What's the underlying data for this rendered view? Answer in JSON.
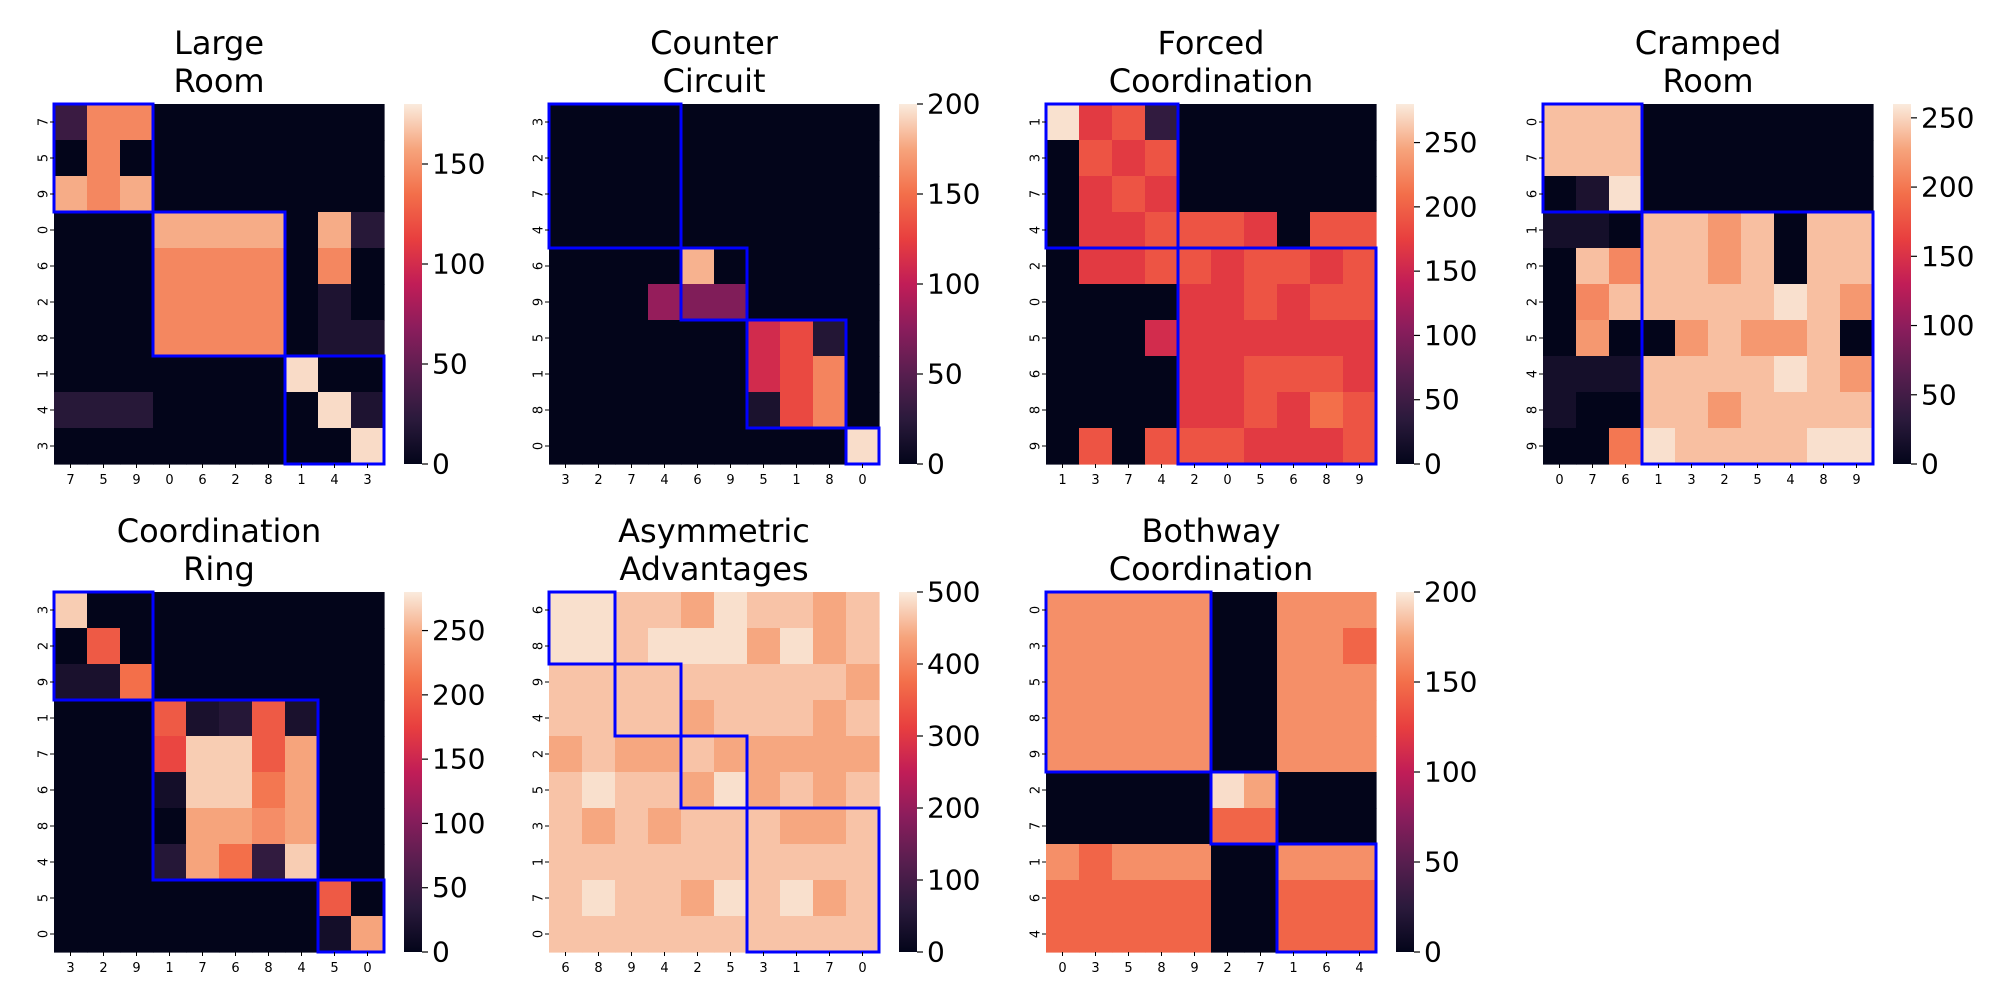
{
  "figure": {
    "title": ""
  },
  "chart_data": [
    {
      "type": "heatmap",
      "title": "Large\nRoom",
      "labels": [
        "7",
        "5",
        "9",
        "0",
        "6",
        "2",
        "8",
        "1",
        "4",
        "3"
      ],
      "vmin": 0,
      "vmax": 180,
      "colorbar_ticks": [
        0,
        50,
        100,
        150
      ],
      "groups": [
        3,
        4,
        3
      ],
      "matrix": [
        [
          30,
          145,
          145,
          0,
          0,
          0,
          0,
          0,
          0,
          0
        ],
        [
          0,
          145,
          0,
          0,
          0,
          0,
          0,
          0,
          0,
          0
        ],
        [
          160,
          145,
          160,
          0,
          0,
          0,
          0,
          0,
          0,
          0
        ],
        [
          0,
          0,
          0,
          160,
          160,
          160,
          160,
          0,
          160,
          20
        ],
        [
          0,
          0,
          0,
          145,
          145,
          145,
          145,
          0,
          145,
          0
        ],
        [
          0,
          0,
          0,
          145,
          145,
          145,
          145,
          0,
          15,
          0
        ],
        [
          0,
          0,
          0,
          145,
          145,
          145,
          145,
          0,
          15,
          15
        ],
        [
          0,
          0,
          0,
          0,
          0,
          0,
          0,
          175,
          0,
          0
        ],
        [
          20,
          20,
          20,
          0,
          0,
          0,
          0,
          0,
          175,
          15
        ],
        [
          0,
          0,
          0,
          0,
          0,
          0,
          0,
          0,
          0,
          175
        ]
      ]
    },
    {
      "type": "heatmap",
      "title": "Counter\nCircuit",
      "labels": [
        "3",
        "2",
        "7",
        "4",
        "6",
        "9",
        "5",
        "1",
        "8",
        "0"
      ],
      "vmin": 0,
      "vmax": 200,
      "colorbar_ticks": [
        0,
        50,
        100,
        150,
        200
      ],
      "groups": [
        4,
        2,
        3,
        1
      ],
      "matrix": [
        [
          0,
          0,
          0,
          0,
          0,
          0,
          0,
          0,
          0,
          0
        ],
        [
          0,
          0,
          0,
          0,
          0,
          0,
          0,
          0,
          0,
          0
        ],
        [
          0,
          0,
          0,
          0,
          0,
          0,
          0,
          0,
          0,
          0
        ],
        [
          0,
          0,
          0,
          0,
          0,
          0,
          0,
          0,
          0,
          0
        ],
        [
          0,
          0,
          0,
          0,
          180,
          0,
          0,
          0,
          0,
          0
        ],
        [
          0,
          0,
          0,
          80,
          70,
          70,
          0,
          0,
          0,
          0
        ],
        [
          0,
          0,
          0,
          0,
          0,
          0,
          110,
          130,
          20,
          0
        ],
        [
          0,
          0,
          0,
          0,
          0,
          0,
          110,
          130,
          160,
          0
        ],
        [
          0,
          0,
          0,
          0,
          0,
          0,
          15,
          130,
          160,
          0
        ],
        [
          0,
          0,
          0,
          0,
          0,
          0,
          0,
          0,
          0,
          195
        ]
      ]
    },
    {
      "type": "heatmap",
      "title": "Forced\nCoordination",
      "labels": [
        "1",
        "3",
        "7",
        "4",
        "2",
        "0",
        "5",
        "6",
        "8",
        "9"
      ],
      "vmin": 0,
      "vmax": 280,
      "colorbar_ticks": [
        0,
        50,
        100,
        150,
        200,
        250
      ],
      "groups": [
        4,
        6
      ],
      "matrix": [
        [
          275,
          170,
          190,
          40,
          0,
          0,
          0,
          0,
          0,
          0
        ],
        [
          0,
          190,
          170,
          190,
          0,
          0,
          0,
          0,
          0,
          0
        ],
        [
          0,
          170,
          190,
          170,
          0,
          0,
          0,
          0,
          0,
          0
        ],
        [
          0,
          170,
          170,
          190,
          190,
          190,
          170,
          0,
          190,
          190
        ],
        [
          0,
          170,
          170,
          190,
          190,
          170,
          190,
          190,
          170,
          190
        ],
        [
          0,
          0,
          0,
          0,
          170,
          170,
          190,
          170,
          190,
          190
        ],
        [
          0,
          0,
          0,
          155,
          170,
          170,
          170,
          170,
          170,
          170
        ],
        [
          0,
          0,
          0,
          0,
          170,
          170,
          190,
          190,
          190,
          170
        ],
        [
          0,
          0,
          0,
          0,
          170,
          170,
          190,
          170,
          210,
          190
        ],
        [
          0,
          190,
          0,
          190,
          190,
          190,
          170,
          170,
          170,
          190
        ]
      ]
    },
    {
      "type": "heatmap",
      "title": "Cramped\nRoom",
      "labels": [
        "0",
        "7",
        "6",
        "1",
        "3",
        "2",
        "5",
        "4",
        "8",
        "9"
      ],
      "vmin": 0,
      "vmax": 260,
      "colorbar_ticks": [
        0,
        50,
        100,
        150,
        200,
        250
      ],
      "groups": [
        3,
        7
      ],
      "matrix": [
        [
          240,
          240,
          240,
          0,
          0,
          0,
          0,
          0,
          0,
          0
        ],
        [
          240,
          240,
          240,
          0,
          0,
          0,
          0,
          0,
          0,
          0
        ],
        [
          0,
          20,
          255,
          0,
          0,
          0,
          0,
          0,
          0,
          0
        ],
        [
          15,
          15,
          0,
          240,
          240,
          220,
          240,
          0,
          240,
          240
        ],
        [
          0,
          240,
          210,
          240,
          240,
          220,
          240,
          0,
          240,
          240
        ],
        [
          0,
          210,
          240,
          240,
          240,
          240,
          240,
          255,
          240,
          220
        ],
        [
          0,
          220,
          0,
          0,
          220,
          240,
          220,
          220,
          240,
          0
        ],
        [
          15,
          15,
          15,
          240,
          240,
          240,
          240,
          255,
          240,
          220
        ],
        [
          15,
          0,
          0,
          240,
          240,
          220,
          240,
          240,
          240,
          240
        ],
        [
          0,
          0,
          200,
          255,
          240,
          240,
          240,
          240,
          255,
          255
        ]
      ]
    },
    {
      "type": "heatmap",
      "title": "Coordination\nRing",
      "labels": [
        "3",
        "2",
        "9",
        "1",
        "7",
        "6",
        "8",
        "4",
        "5",
        "0"
      ],
      "vmin": 0,
      "vmax": 280,
      "colorbar_ticks": [
        0,
        50,
        100,
        150,
        200,
        250
      ],
      "groups": [
        3,
        5,
        2
      ],
      "matrix": [
        [
          265,
          0,
          0,
          0,
          0,
          0,
          0,
          0,
          0,
          0
        ],
        [
          0,
          195,
          0,
          0,
          0,
          0,
          0,
          0,
          0,
          0
        ],
        [
          20,
          20,
          210,
          0,
          0,
          0,
          0,
          0,
          0,
          0
        ],
        [
          0,
          0,
          0,
          195,
          20,
          30,
          195,
          20,
          0,
          0
        ],
        [
          0,
          0,
          0,
          180,
          265,
          265,
          195,
          245,
          0,
          0
        ],
        [
          0,
          0,
          0,
          15,
          265,
          265,
          215,
          245,
          0,
          0
        ],
        [
          0,
          0,
          0,
          0,
          245,
          245,
          230,
          245,
          0,
          0
        ],
        [
          0,
          0,
          0,
          30,
          245,
          210,
          40,
          265,
          0,
          0
        ],
        [
          0,
          0,
          0,
          0,
          0,
          0,
          0,
          0,
          195,
          0
        ],
        [
          0,
          0,
          0,
          0,
          0,
          0,
          0,
          0,
          15,
          245
        ]
      ]
    },
    {
      "type": "heatmap",
      "title": "Asymmetric\nAdvantages",
      "labels": [
        "6",
        "8",
        "9",
        "4",
        "2",
        "5",
        "3",
        "1",
        "7",
        "0"
      ],
      "vmin": 0,
      "vmax": 500,
      "colorbar_ticks": [
        0,
        100,
        200,
        300,
        400,
        500
      ],
      "groups": [
        2,
        2,
        2,
        4
      ],
      "matrix": [
        [
          490,
          490,
          465,
          465,
          440,
          490,
          465,
          465,
          440,
          465
        ],
        [
          490,
          490,
          465,
          490,
          490,
          490,
          440,
          490,
          440,
          465
        ],
        [
          465,
          465,
          465,
          465,
          465,
          465,
          465,
          465,
          465,
          440
        ],
        [
          465,
          465,
          465,
          465,
          440,
          465,
          465,
          465,
          440,
          465
        ],
        [
          440,
          465,
          440,
          440,
          465,
          440,
          440,
          440,
          440,
          440
        ],
        [
          465,
          490,
          465,
          465,
          440,
          490,
          440,
          465,
          440,
          465
        ],
        [
          465,
          440,
          465,
          440,
          465,
          465,
          465,
          440,
          440,
          465
        ],
        [
          465,
          465,
          465,
          465,
          465,
          465,
          465,
          465,
          465,
          465
        ],
        [
          465,
          490,
          465,
          465,
          440,
          490,
          465,
          490,
          440,
          465
        ],
        [
          465,
          465,
          465,
          465,
          465,
          465,
          465,
          465,
          465,
          465
        ]
      ]
    },
    {
      "type": "heatmap",
      "title": "Bothway\nCoordination",
      "labels": [
        "0",
        "3",
        "5",
        "8",
        "9",
        "2",
        "7",
        "1",
        "6",
        "4"
      ],
      "vmin": 0,
      "vmax": 200,
      "colorbar_ticks": [
        0,
        50,
        100,
        150,
        200
      ],
      "groups": [
        5,
        2,
        3
      ],
      "matrix": [
        [
          165,
          165,
          165,
          165,
          165,
          0,
          0,
          165,
          165,
          165
        ],
        [
          165,
          165,
          165,
          165,
          165,
          0,
          0,
          165,
          165,
          145
        ],
        [
          165,
          165,
          165,
          165,
          165,
          0,
          0,
          165,
          165,
          165
        ],
        [
          165,
          165,
          165,
          165,
          165,
          0,
          0,
          165,
          165,
          165
        ],
        [
          165,
          165,
          165,
          165,
          165,
          0,
          0,
          165,
          165,
          165
        ],
        [
          0,
          0,
          0,
          0,
          0,
          195,
          175,
          0,
          0,
          0
        ],
        [
          0,
          0,
          0,
          0,
          0,
          145,
          145,
          0,
          0,
          0
        ],
        [
          165,
          145,
          165,
          165,
          165,
          0,
          0,
          165,
          165,
          165
        ],
        [
          145,
          145,
          145,
          145,
          145,
          0,
          0,
          145,
          145,
          145
        ],
        [
          145,
          145,
          145,
          145,
          145,
          0,
          0,
          145,
          145,
          145
        ]
      ]
    }
  ]
}
